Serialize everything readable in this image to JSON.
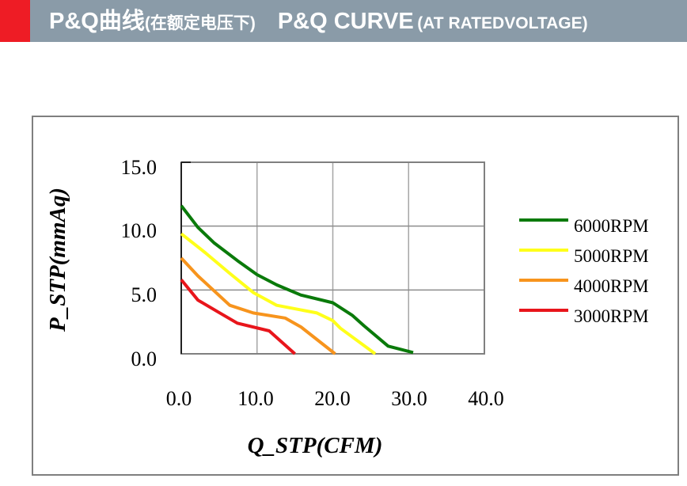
{
  "header": {
    "title_cn": "P&Q曲线",
    "subtitle_cn": "(在额定电压下)",
    "title_en": "P&Q CURVE",
    "subtitle_en": "(AT RATEDVOLTAGE)",
    "accent_color": "#ee1c25",
    "bar_color": "#8a9ba8"
  },
  "chart_data": {
    "type": "line",
    "title": "P&Q CURVE (AT RATEDVOLTAGE)",
    "xlabel": "Q_STP(CFM)",
    "ylabel": "P_STP(mmAq)",
    "xlim": [
      0,
      40
    ],
    "ylim": [
      0,
      15
    ],
    "x_ticks": [
      "0.0",
      "10.0",
      "20.0",
      "30.0",
      "40.0"
    ],
    "y_ticks": [
      "0.0",
      "5.0",
      "10.0",
      "15.0"
    ],
    "grid": true,
    "legend_position": "right",
    "series": [
      {
        "name": "6000RPM",
        "color": "#0a7a0a",
        "x": [
          0,
          2.2,
          4.3,
          7.4,
          10.0,
          12.6,
          15.8,
          20.0,
          22.6,
          24.1,
          27.3,
          30.6
        ],
        "y": [
          11.6,
          9.9,
          8.7,
          7.3,
          6.2,
          5.4,
          4.6,
          4.0,
          3.0,
          2.2,
          0.6,
          0.1
        ]
      },
      {
        "name": "5000RPM",
        "color": "#ffff1a",
        "x": [
          0,
          3.2,
          6.4,
          9.5,
          12.6,
          17.9,
          20.0,
          21.0,
          25.6
        ],
        "y": [
          9.4,
          7.9,
          6.3,
          4.8,
          3.8,
          3.2,
          2.6,
          2.0,
          0.0
        ]
      },
      {
        "name": "4000RPM",
        "color": "#f7941d",
        "x": [
          0,
          2.2,
          6.4,
          9.5,
          13.7,
          15.8,
          20.3
        ],
        "y": [
          7.5,
          6.1,
          3.8,
          3.2,
          2.8,
          2.1,
          0.0
        ]
      },
      {
        "name": "3000RPM",
        "color": "#e8151b",
        "x": [
          0,
          2.2,
          4.8,
          7.4,
          11.6,
          15.0
        ],
        "y": [
          5.8,
          4.2,
          3.3,
          2.4,
          1.8,
          0.0
        ]
      }
    ]
  }
}
